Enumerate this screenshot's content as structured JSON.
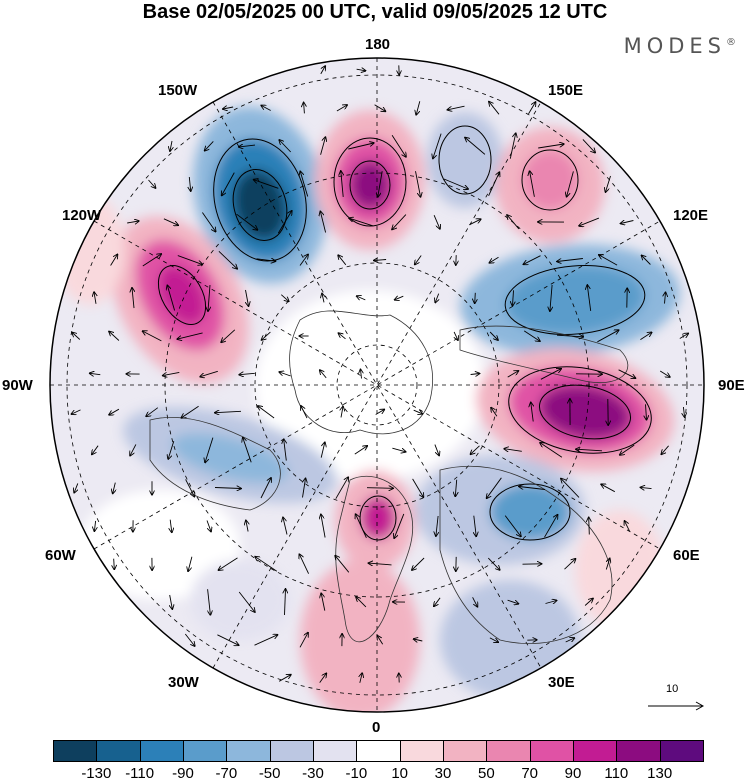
{
  "header": {
    "title": "Base 02/05/2025 00 UTC, valid 09/05/2025 12 UTC",
    "brand": "MODES",
    "brand_mark": "®"
  },
  "map": {
    "projection": "north-polar-stereographic",
    "longitude_labels": {
      "top": "180",
      "top_left": "150W",
      "top_right": "150E",
      "upper_left": "120W",
      "upper_right": "120E",
      "left": "90W",
      "right": "90E",
      "lower_left": "60W",
      "lower_right": "60E",
      "bottom_left": "30W",
      "bottom_right": "30E",
      "bottom": "0"
    },
    "reference_vector_label": "10",
    "anomaly_colors": {
      "neg_strong": "#0e3f5e",
      "neg_mid": "#3c8cbf",
      "neg_light": "#c9cfe6",
      "pos_light": "#f4c7cf",
      "pos_mid": "#e07aa6",
      "pos_strong": "#9a1a86"
    }
  },
  "colorbar": {
    "colors": [
      "#0e3f5e",
      "#17618f",
      "#2c80b8",
      "#5a9ccb",
      "#8db7dc",
      "#bcc7e2",
      "#e3e2f0",
      "#ffffff",
      "#f9d9dd",
      "#f2b3c2",
      "#ea86b0",
      "#e052a5",
      "#c21c93",
      "#8c0c80",
      "#5e0b7e"
    ],
    "ticks": [
      "-130",
      "-110",
      "-90",
      "-70",
      "-50",
      "-30",
      "-10",
      "10",
      "30",
      "50",
      "70",
      "90",
      "110",
      "130"
    ]
  }
}
